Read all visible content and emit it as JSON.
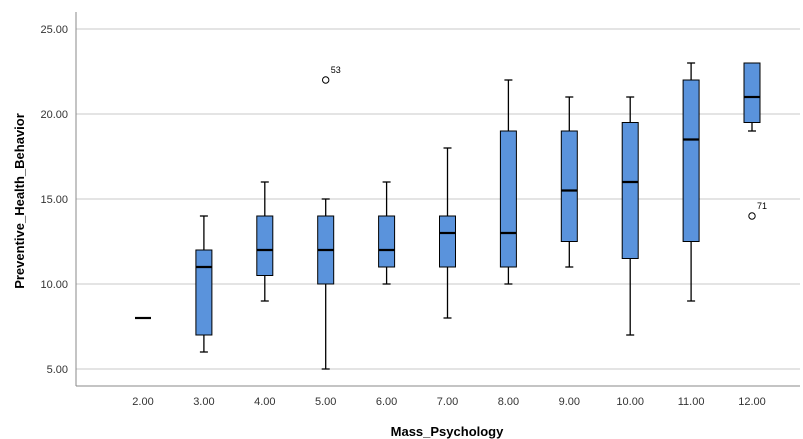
{
  "chart_data": {
    "type": "boxplot",
    "xlabel": "Mass_Psychology",
    "ylabel": "Preventive_Health_Behavior",
    "ylim": [
      4,
      26
    ],
    "y_ticks": [
      "5.00",
      "10.00",
      "15.00",
      "20.00",
      "25.00"
    ],
    "grid": "horizontal",
    "colors": {
      "box_fill": "#5a93dc",
      "box_stroke": "#000000",
      "grid": "#c8c8c8"
    },
    "categories": [
      "2.00",
      "3.00",
      "4.00",
      "5.00",
      "6.00",
      "7.00",
      "8.00",
      "9.00",
      "10.00",
      "11.00",
      "12.00"
    ],
    "boxes": [
      {
        "x": "2.00",
        "min": 8,
        "q1": 8,
        "median": 8,
        "q3": 8,
        "max": 8
      },
      {
        "x": "3.00",
        "min": 6,
        "q1": 7,
        "median": 11,
        "q3": 12,
        "max": 14
      },
      {
        "x": "4.00",
        "min": 9,
        "q1": 10.5,
        "median": 12,
        "q3": 14,
        "max": 16
      },
      {
        "x": "5.00",
        "min": 5,
        "q1": 10,
        "median": 12,
        "q3": 14,
        "max": 15
      },
      {
        "x": "6.00",
        "min": 10,
        "q1": 11,
        "median": 12,
        "q3": 14,
        "max": 16
      },
      {
        "x": "7.00",
        "min": 8,
        "q1": 11,
        "median": 13,
        "q3": 14,
        "max": 18
      },
      {
        "x": "8.00",
        "min": 10,
        "q1": 11,
        "median": 13,
        "q3": 19,
        "max": 22
      },
      {
        "x": "9.00",
        "min": 11,
        "q1": 12.5,
        "median": 15.5,
        "q3": 19,
        "max": 21
      },
      {
        "x": "10.00",
        "min": 7,
        "q1": 11.5,
        "median": 16,
        "q3": 19.5,
        "max": 21
      },
      {
        "x": "11.00",
        "min": 9,
        "q1": 12.5,
        "median": 18.5,
        "q3": 22,
        "max": 23
      },
      {
        "x": "12.00",
        "min": 19,
        "q1": 19.5,
        "median": 21,
        "q3": 23,
        "max": 23
      }
    ],
    "outliers": [
      {
        "x": "5.00",
        "y": 22,
        "label": "53"
      },
      {
        "x": "12.00",
        "y": 14,
        "label": "71"
      }
    ]
  }
}
